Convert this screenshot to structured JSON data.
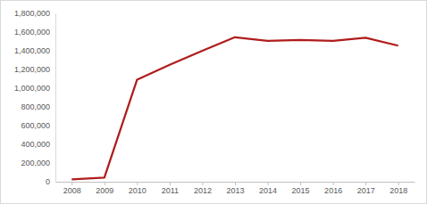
{
  "chart_data": {
    "type": "line",
    "categories": [
      "2008",
      "2009",
      "2010",
      "2011",
      "2012",
      "2013",
      "2014",
      "2015",
      "2016",
      "2017",
      "2018"
    ],
    "values": [
      25000,
      45000,
      1090000,
      1250000,
      1400000,
      1545000,
      1505000,
      1515000,
      1505000,
      1540000,
      1455000
    ],
    "color": "#b01c1c",
    "ylim": [
      0,
      1800000
    ],
    "yticks": [
      0,
      {
        "value": 200000,
        "label": "200,000"
      },
      {
        "value": 400000,
        "label": "400,000"
      },
      {
        "value": 600000,
        "label": "600,000"
      },
      {
        "value": 800000,
        "label": "800,000"
      },
      {
        "value": 1000000,
        "label": "1,000,000"
      },
      {
        "value": 1200000,
        "label": "1,200,000"
      },
      {
        "value": 1400000,
        "label": "1,400,000"
      },
      {
        "value": 1600000,
        "label": "1,600,000"
      },
      {
        "value": 1800000,
        "label": "1,800,000"
      }
    ],
    "grid": false
  }
}
